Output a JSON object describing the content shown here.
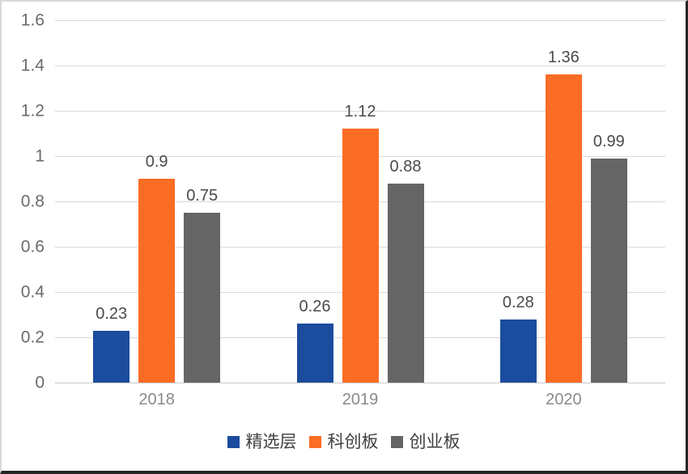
{
  "chart_data": {
    "type": "bar",
    "categories": [
      "2018",
      "2019",
      "2020"
    ],
    "series": [
      {
        "name": "精选层",
        "color": "#1C4C9E",
        "values": [
          0.23,
          0.26,
          0.28
        ]
      },
      {
        "name": "科创板",
        "color": "#FB6C25",
        "values": [
          0.9,
          1.12,
          1.36
        ]
      },
      {
        "name": "创业板",
        "color": "#656565",
        "values": [
          0.75,
          0.88,
          0.99
        ]
      }
    ],
    "data_labels": [
      [
        "0.23",
        "0.26",
        "0.28"
      ],
      [
        "0.9",
        "1.12",
        "1.36"
      ],
      [
        "0.75",
        "0.88",
        "0.99"
      ]
    ],
    "title": "",
    "xlabel": "",
    "ylabel": "",
    "ylim": [
      0,
      1.6
    ],
    "ytick_step": 0.2,
    "ytick_labels": [
      "0",
      "0.2",
      "0.4",
      "0.6",
      "0.8",
      "1",
      "1.2",
      "1.4",
      "1.6"
    ],
    "grid": true,
    "legend_position": "bottom"
  },
  "colors": {
    "background": "#FFFFFF",
    "gridline": "#D9D9D9",
    "axis_line": "#C9C9C9",
    "ytick_text": "#6B6B6B",
    "xtick_text": "#8A8A8A",
    "value_label_text": "#4A4A4A",
    "legend_text": "#3F3F3F"
  }
}
